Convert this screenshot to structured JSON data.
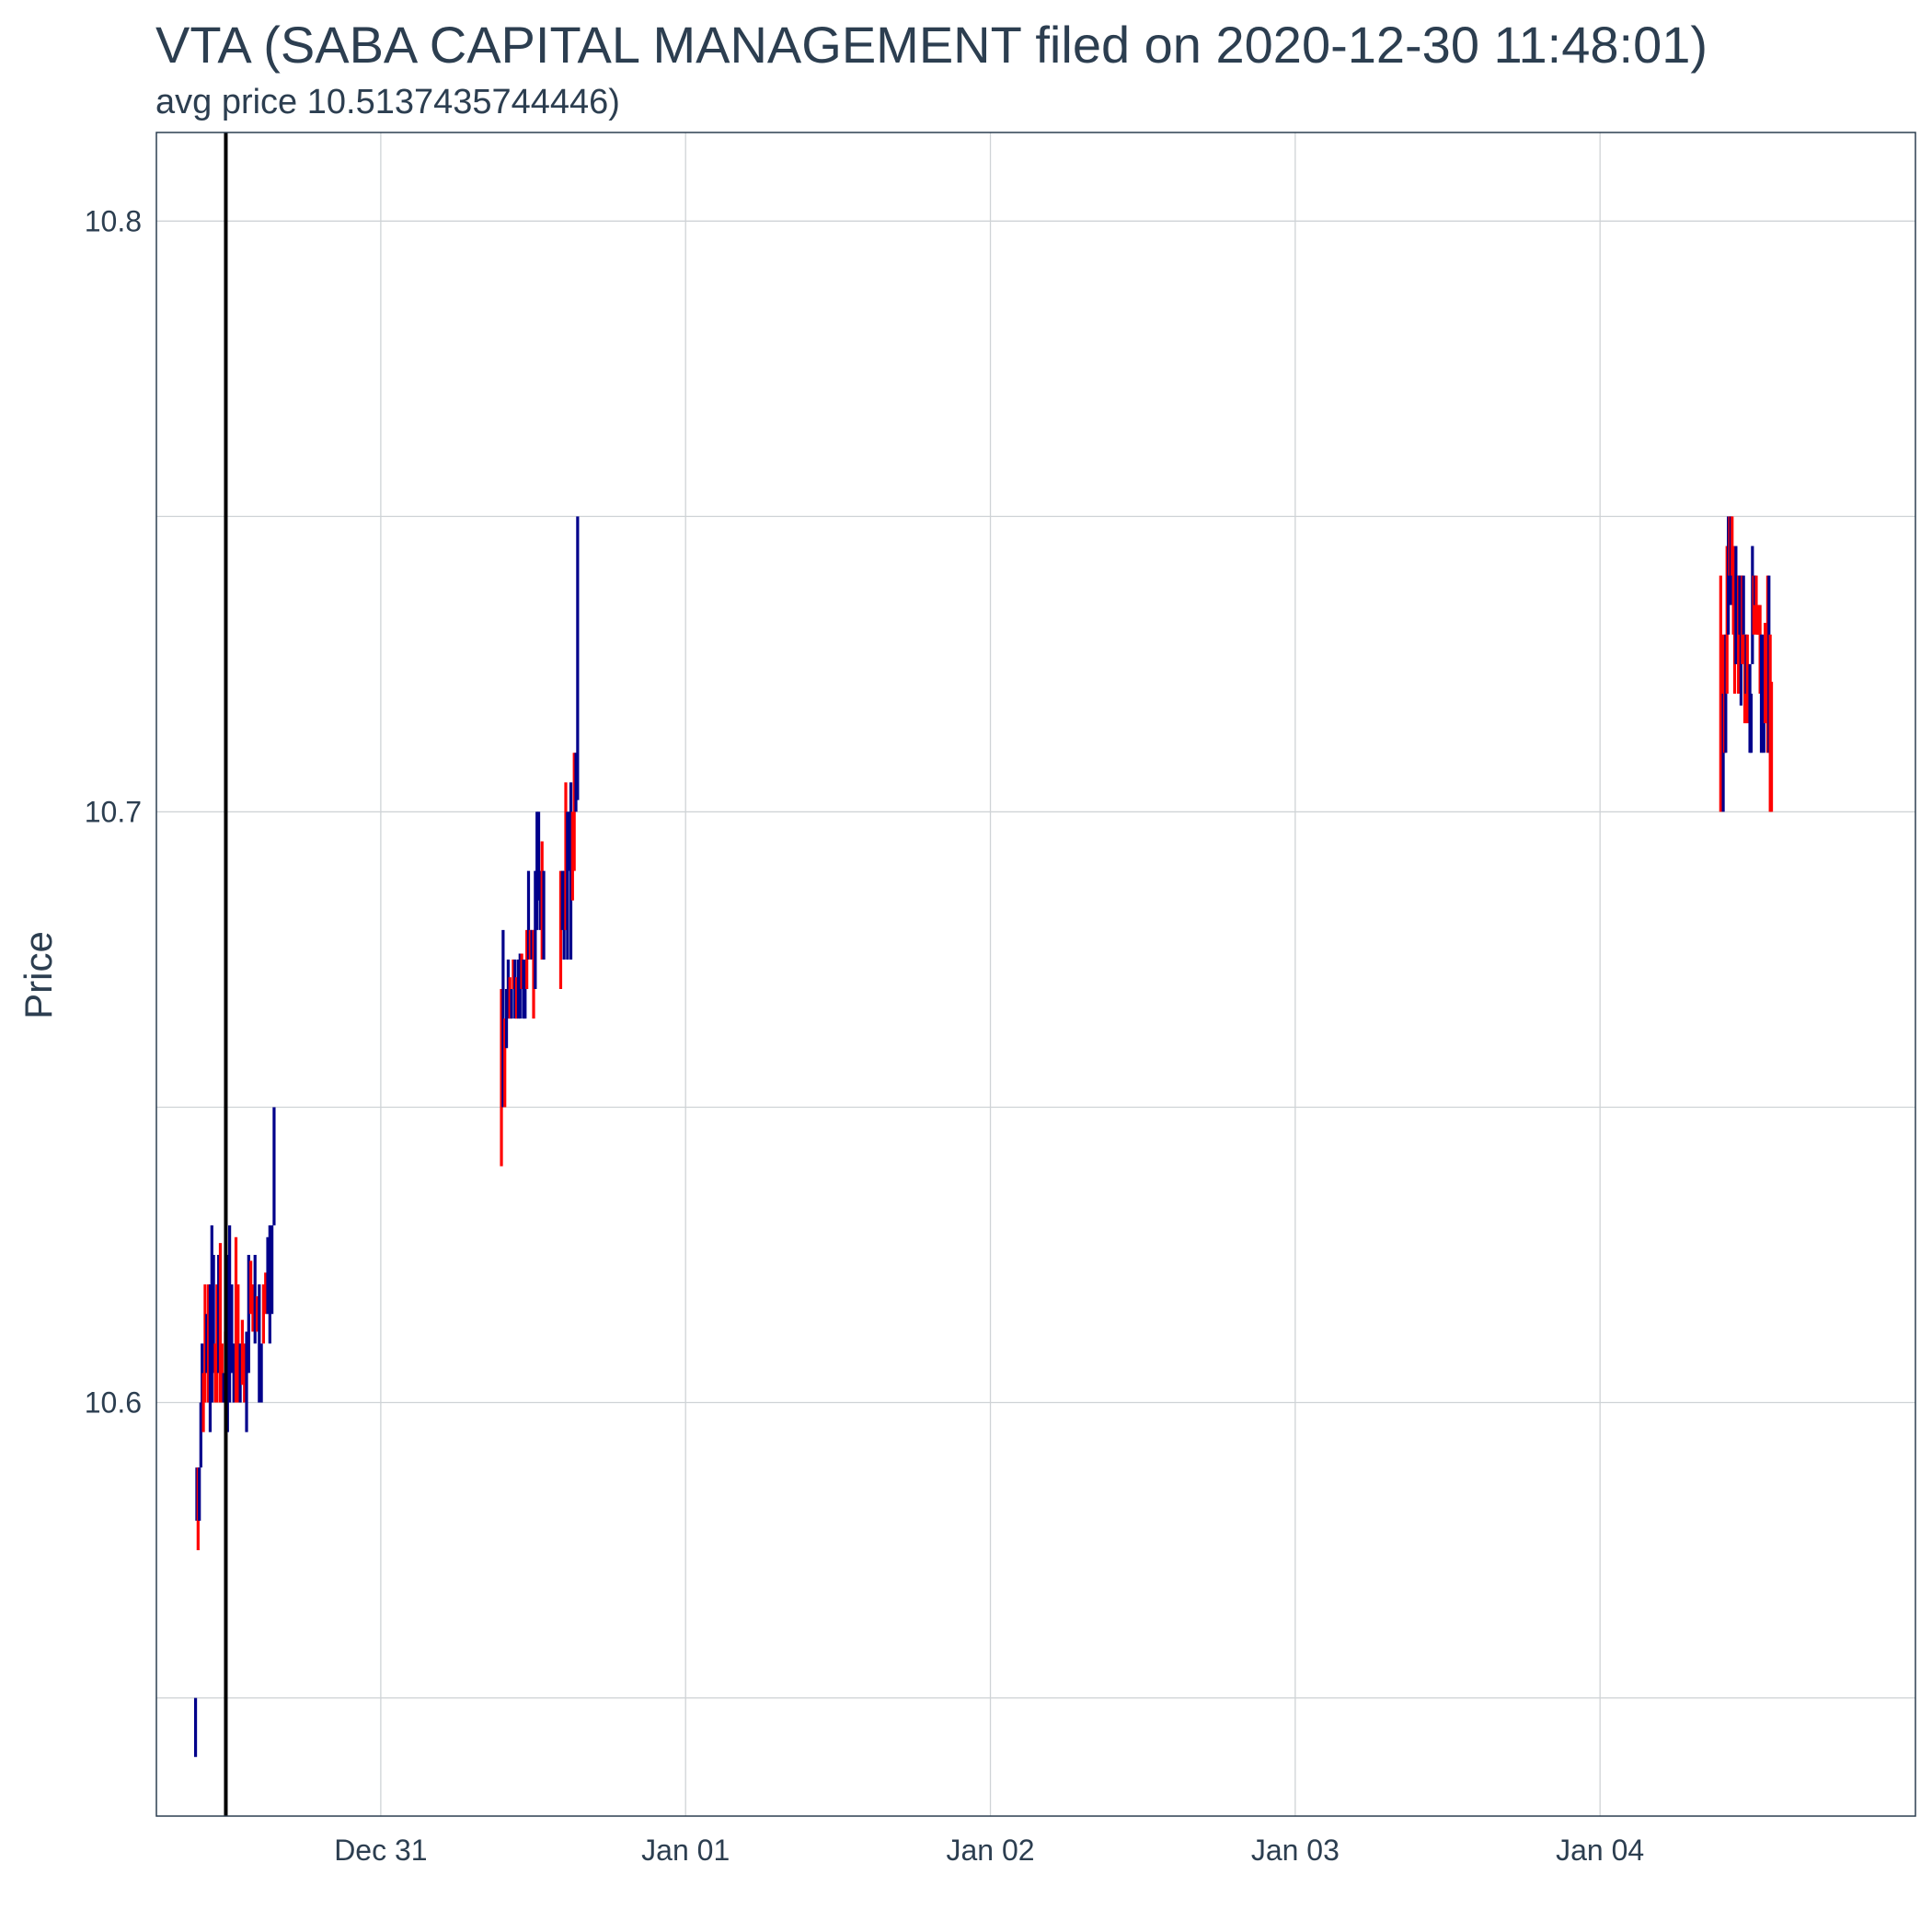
{
  "chart_data": {
    "type": "line",
    "title": "VTA (SABA CAPITAL MANAGEMENT filed on 2020-12-30 11:48:01)",
    "subtitle": "avg price 10.5137435744446)",
    "xlabel": "",
    "ylabel": "Price",
    "x_range": [
      "2020-12-30 06:20",
      "2021-01-05 00:50"
    ],
    "ylim": [
      10.53,
      10.815
    ],
    "y_ticks": [
      10.6,
      10.7,
      10.8
    ],
    "y_tick_labels": [
      "10.6",
      "10.7",
      "10.8"
    ],
    "y_minor_ticks": [
      10.55,
      10.65,
      10.75
    ],
    "x_ticks": [
      "2020-12-31 00:00",
      "2021-01-01 00:00",
      "2021-01-02 00:00",
      "2021-01-03 00:00",
      "2021-01-04 00:00"
    ],
    "x_tick_labels": [
      "Dec 31",
      "Jan 01",
      "Jan 02",
      "Jan 03",
      "Jan 04"
    ],
    "grid": true,
    "vline": {
      "x": "2020-12-30 11:48:01",
      "color": "#000000"
    },
    "colors": {
      "up": "#00008b",
      "down": "#ff0000"
    },
    "series": [
      {
        "segments": [
          {
            "t": "2020-12-30 09:25",
            "low": 10.54,
            "high": 10.55,
            "dir": "up"
          },
          {
            "t": "2020-12-30 09:31",
            "low": 10.58,
            "high": 10.589,
            "dir": "up"
          },
          {
            "t": "2020-12-30 09:37",
            "low": 10.575,
            "high": 10.589,
            "dir": "down"
          },
          {
            "t": "2020-12-30 09:43",
            "low": 10.58,
            "high": 10.589,
            "dir": "up"
          },
          {
            "t": "2020-12-30 09:50",
            "low": 10.589,
            "high": 10.6,
            "dir": "up"
          },
          {
            "t": "2020-12-30 09:56",
            "low": 10.6,
            "high": 10.61,
            "dir": "up"
          },
          {
            "t": "2020-12-30 10:02",
            "low": 10.595,
            "high": 10.605,
            "dir": "down"
          },
          {
            "t": "2020-12-30 10:10",
            "low": 10.6,
            "high": 10.62,
            "dir": "down"
          },
          {
            "t": "2020-12-30 10:18",
            "low": 10.605,
            "high": 10.615,
            "dir": "up"
          },
          {
            "t": "2020-12-30 10:26",
            "low": 10.6,
            "high": 10.62,
            "dir": "down"
          },
          {
            "t": "2020-12-30 10:34",
            "low": 10.595,
            "high": 10.62,
            "dir": "up"
          },
          {
            "t": "2020-12-30 10:42",
            "low": 10.6,
            "high": 10.63,
            "dir": "up"
          },
          {
            "t": "2020-12-30 10:50",
            "low": 10.605,
            "high": 10.625,
            "dir": "up"
          },
          {
            "t": "2020-12-30 10:58",
            "low": 10.6,
            "high": 10.61,
            "dir": "down"
          },
          {
            "t": "2020-12-30 11:06",
            "low": 10.6,
            "high": 10.62,
            "dir": "down"
          },
          {
            "t": "2020-12-30 11:14",
            "low": 10.605,
            "high": 10.625,
            "dir": "up"
          },
          {
            "t": "2020-12-30 11:22",
            "low": 10.6,
            "high": 10.627,
            "dir": "down"
          },
          {
            "t": "2020-12-30 11:30",
            "low": 10.6,
            "high": 10.61,
            "dir": "down"
          },
          {
            "t": "2020-12-30 11:38",
            "low": 10.6,
            "high": 10.605,
            "dir": "up"
          },
          {
            "t": "2020-12-30 11:46",
            "low": 10.602,
            "high": 10.612,
            "dir": "down"
          },
          {
            "t": "2020-12-30 11:56",
            "low": 10.595,
            "high": 10.625,
            "dir": "up"
          },
          {
            "t": "2020-12-30 12:06",
            "low": 10.6,
            "high": 10.63,
            "dir": "up"
          },
          {
            "t": "2020-12-30 12:16",
            "low": 10.605,
            "high": 10.62,
            "dir": "up"
          },
          {
            "t": "2020-12-30 12:26",
            "low": 10.6,
            "high": 10.61,
            "dir": "up"
          },
          {
            "t": "2020-12-30 12:36",
            "low": 10.6,
            "high": 10.628,
            "dir": "down"
          },
          {
            "t": "2020-12-30 12:46",
            "low": 10.6,
            "high": 10.62,
            "dir": "down"
          },
          {
            "t": "2020-12-30 12:56",
            "low": 10.6,
            "high": 10.61,
            "dir": "up"
          },
          {
            "t": "2020-12-30 13:06",
            "low": 10.603,
            "high": 10.614,
            "dir": "down"
          },
          {
            "t": "2020-12-30 13:16",
            "low": 10.6,
            "high": 10.61,
            "dir": "down"
          },
          {
            "t": "2020-12-30 13:26",
            "low": 10.595,
            "high": 10.612,
            "dir": "up"
          },
          {
            "t": "2020-12-30 13:36",
            "low": 10.605,
            "high": 10.625,
            "dir": "up"
          },
          {
            "t": "2020-12-30 13:46",
            "low": 10.615,
            "high": 10.624,
            "dir": "down"
          },
          {
            "t": "2020-12-30 13:56",
            "low": 10.612,
            "high": 10.62,
            "dir": "down"
          },
          {
            "t": "2020-12-30 14:06",
            "low": 10.61,
            "high": 10.625,
            "dir": "up"
          },
          {
            "t": "2020-12-30 14:16",
            "low": 10.612,
            "high": 10.618,
            "dir": "down"
          },
          {
            "t": "2020-12-30 14:26",
            "low": 10.6,
            "high": 10.62,
            "dir": "up"
          },
          {
            "t": "2020-12-30 14:36",
            "low": 10.6,
            "high": 10.61,
            "dir": "up"
          },
          {
            "t": "2020-12-30 14:46",
            "low": 10.61,
            "high": 10.62,
            "dir": "down"
          },
          {
            "t": "2020-12-30 14:56",
            "low": 10.615,
            "high": 10.622,
            "dir": "down"
          },
          {
            "t": "2020-12-30 15:06",
            "low": 10.615,
            "high": 10.628,
            "dir": "up"
          },
          {
            "t": "2020-12-30 15:16",
            "low": 10.61,
            "high": 10.63,
            "dir": "up"
          },
          {
            "t": "2020-12-30 15:26",
            "low": 10.615,
            "high": 10.63,
            "dir": "up"
          },
          {
            "t": "2020-12-30 15:36",
            "low": 10.63,
            "high": 10.65,
            "dir": "up"
          },
          {
            "t": "2020-12-31 09:30",
            "low": 10.64,
            "high": 10.67,
            "dir": "down"
          },
          {
            "t": "2020-12-31 09:38",
            "low": 10.65,
            "high": 10.68,
            "dir": "up"
          },
          {
            "t": "2020-12-31 09:46",
            "low": 10.65,
            "high": 10.665,
            "dir": "down"
          },
          {
            "t": "2020-12-31 09:54",
            "low": 10.66,
            "high": 10.67,
            "dir": "up"
          },
          {
            "t": "2020-12-31 10:02",
            "low": 10.665,
            "high": 10.675,
            "dir": "up"
          },
          {
            "t": "2020-12-31 10:10",
            "low": 10.665,
            "high": 10.672,
            "dir": "down"
          },
          {
            "t": "2020-12-31 10:18",
            "low": 10.665,
            "high": 10.67,
            "dir": "up"
          },
          {
            "t": "2020-12-31 10:26",
            "low": 10.67,
            "high": 10.675,
            "dir": "down"
          },
          {
            "t": "2020-12-31 10:34",
            "low": 10.665,
            "high": 10.675,
            "dir": "up"
          },
          {
            "t": "2020-12-31 10:42",
            "low": 10.665,
            "high": 10.672,
            "dir": "down"
          },
          {
            "t": "2020-12-31 10:50",
            "low": 10.665,
            "high": 10.675,
            "dir": "up"
          },
          {
            "t": "2020-12-31 10:58",
            "low": 10.665,
            "high": 10.676,
            "dir": "up"
          },
          {
            "t": "2020-12-31 11:06",
            "low": 10.67,
            "high": 10.676,
            "dir": "down"
          },
          {
            "t": "2020-12-31 11:14",
            "low": 10.665,
            "high": 10.675,
            "dir": "up"
          },
          {
            "t": "2020-12-31 11:22",
            "low": 10.665,
            "high": 10.675,
            "dir": "up"
          },
          {
            "t": "2020-12-31 11:30",
            "low": 10.67,
            "high": 10.68,
            "dir": "down"
          },
          {
            "t": "2020-12-31 11:38",
            "low": 10.675,
            "high": 10.69,
            "dir": "up"
          },
          {
            "t": "2020-12-31 11:46",
            "low": 10.675,
            "high": 10.68,
            "dir": "down"
          },
          {
            "t": "2020-12-31 11:54",
            "low": 10.675,
            "high": 10.68,
            "dir": "up"
          },
          {
            "t": "2020-12-31 12:02",
            "low": 10.665,
            "high": 10.68,
            "dir": "down"
          },
          {
            "t": "2020-12-31 12:10",
            "low": 10.67,
            "high": 10.69,
            "dir": "up"
          },
          {
            "t": "2020-12-31 12:18",
            "low": 10.68,
            "high": 10.7,
            "dir": "up"
          },
          {
            "t": "2020-12-31 12:26",
            "low": 10.685,
            "high": 10.7,
            "dir": "up"
          },
          {
            "t": "2020-12-31 12:34",
            "low": 10.68,
            "high": 10.69,
            "dir": "up"
          },
          {
            "t": "2020-12-31 12:42",
            "low": 10.675,
            "high": 10.695,
            "dir": "down"
          },
          {
            "t": "2020-12-31 12:50",
            "low": 10.675,
            "high": 10.69,
            "dir": "up"
          },
          {
            "t": "2020-12-31 14:10",
            "low": 10.67,
            "high": 10.69,
            "dir": "down"
          },
          {
            "t": "2020-12-31 14:18",
            "low": 10.68,
            "high": 10.69,
            "dir": "up"
          },
          {
            "t": "2020-12-31 14:26",
            "low": 10.675,
            "high": 10.69,
            "dir": "up"
          },
          {
            "t": "2020-12-31 14:34",
            "low": 10.68,
            "high": 10.705,
            "dir": "down"
          },
          {
            "t": "2020-12-31 14:42",
            "low": 10.675,
            "high": 10.7,
            "dir": "up"
          },
          {
            "t": "2020-12-31 14:50",
            "low": 10.69,
            "high": 10.7,
            "dir": "up"
          },
          {
            "t": "2020-12-31 14:58",
            "low": 10.675,
            "high": 10.705,
            "dir": "up"
          },
          {
            "t": "2020-12-31 15:06",
            "low": 10.685,
            "high": 10.7,
            "dir": "down"
          },
          {
            "t": "2020-12-31 15:14",
            "low": 10.69,
            "high": 10.71,
            "dir": "down"
          },
          {
            "t": "2020-12-31 15:22",
            "low": 10.7,
            "high": 10.71,
            "dir": "up"
          },
          {
            "t": "2020-12-31 15:30",
            "low": 10.702,
            "high": 10.75,
            "dir": "up"
          },
          {
            "t": "2021-01-04 09:30",
            "low": 10.7,
            "high": 10.74,
            "dir": "down"
          },
          {
            "t": "2021-01-04 09:36",
            "low": 10.71,
            "high": 10.73,
            "dir": "down"
          },
          {
            "t": "2021-01-04 09:42",
            "low": 10.7,
            "high": 10.72,
            "dir": "up"
          },
          {
            "t": "2021-01-04 09:48",
            "low": 10.71,
            "high": 10.73,
            "dir": "down"
          },
          {
            "t": "2021-01-04 09:54",
            "low": 10.71,
            "high": 10.73,
            "dir": "up"
          },
          {
            "t": "2021-01-04 10:00",
            "low": 10.72,
            "high": 10.745,
            "dir": "down"
          },
          {
            "t": "2021-01-04 10:06",
            "low": 10.73,
            "high": 10.75,
            "dir": "up"
          },
          {
            "t": "2021-01-04 10:12",
            "low": 10.74,
            "high": 10.75,
            "dir": "down"
          },
          {
            "t": "2021-01-04 10:18",
            "low": 10.735,
            "high": 10.75,
            "dir": "up"
          },
          {
            "t": "2021-01-04 10:24",
            "low": 10.74,
            "high": 10.75,
            "dir": "down"
          },
          {
            "t": "2021-01-04 10:30",
            "low": 10.73,
            "high": 10.745,
            "dir": "down"
          },
          {
            "t": "2021-01-04 10:36",
            "low": 10.72,
            "high": 10.74,
            "dir": "down"
          },
          {
            "t": "2021-01-04 10:42",
            "low": 10.725,
            "high": 10.745,
            "dir": "up"
          },
          {
            "t": "2021-01-04 10:48",
            "low": 10.725,
            "high": 10.74,
            "dir": "up"
          },
          {
            "t": "2021-01-04 10:54",
            "low": 10.72,
            "high": 10.74,
            "dir": "down"
          },
          {
            "t": "2021-01-04 11:00",
            "low": 10.73,
            "high": 10.74,
            "dir": "up"
          },
          {
            "t": "2021-01-04 11:06",
            "low": 10.718,
            "high": 10.74,
            "dir": "up"
          },
          {
            "t": "2021-01-04 11:12",
            "low": 10.725,
            "high": 10.74,
            "dir": "down"
          },
          {
            "t": "2021-01-04 11:18",
            "low": 10.73,
            "high": 10.74,
            "dir": "up"
          },
          {
            "t": "2021-01-04 11:24",
            "low": 10.715,
            "high": 10.73,
            "dir": "down"
          },
          {
            "t": "2021-01-04 11:30",
            "low": 10.72,
            "high": 10.73,
            "dir": "up"
          },
          {
            "t": "2021-01-04 11:36",
            "low": 10.715,
            "high": 10.73,
            "dir": "down"
          },
          {
            "t": "2021-01-04 11:42",
            "low": 10.72,
            "high": 10.725,
            "dir": "down"
          },
          {
            "t": "2021-01-04 11:48",
            "low": 10.71,
            "high": 10.725,
            "dir": "up"
          },
          {
            "t": "2021-01-04 11:54",
            "low": 10.71,
            "high": 10.72,
            "dir": "up"
          },
          {
            "t": "2021-01-04 12:00",
            "low": 10.725,
            "high": 10.745,
            "dir": "up"
          },
          {
            "t": "2021-01-04 12:06",
            "low": 10.73,
            "high": 10.74,
            "dir": "down"
          },
          {
            "t": "2021-01-04 12:12",
            "low": 10.735,
            "high": 10.74,
            "dir": "up"
          },
          {
            "t": "2021-01-04 12:18",
            "low": 10.73,
            "high": 10.74,
            "dir": "down"
          },
          {
            "t": "2021-01-04 12:24",
            "low": 10.73,
            "high": 10.735,
            "dir": "down"
          },
          {
            "t": "2021-01-04 12:30",
            "low": 10.73,
            "high": 10.735,
            "dir": "down"
          },
          {
            "t": "2021-01-04 12:36",
            "low": 10.72,
            "high": 10.735,
            "dir": "down"
          },
          {
            "t": "2021-01-04 12:42",
            "low": 10.71,
            "high": 10.73,
            "dir": "up"
          },
          {
            "t": "2021-01-04 12:48",
            "low": 10.715,
            "high": 10.73,
            "dir": "up"
          },
          {
            "t": "2021-01-04 12:54",
            "low": 10.71,
            "high": 10.725,
            "dir": "up"
          },
          {
            "t": "2021-01-04 13:00",
            "low": 10.715,
            "high": 10.732,
            "dir": "down"
          },
          {
            "t": "2021-01-04 13:06",
            "low": 10.72,
            "high": 10.73,
            "dir": "down"
          },
          {
            "t": "2021-01-04 13:12",
            "low": 10.71,
            "high": 10.74,
            "dir": "down"
          },
          {
            "t": "2021-01-04 13:18",
            "low": 10.71,
            "high": 10.74,
            "dir": "up"
          },
          {
            "t": "2021-01-04 13:24",
            "low": 10.7,
            "high": 10.73,
            "dir": "down"
          },
          {
            "t": "2021-01-04 13:30",
            "low": 10.7,
            "high": 10.722,
            "dir": "down"
          }
        ]
      }
    ]
  }
}
